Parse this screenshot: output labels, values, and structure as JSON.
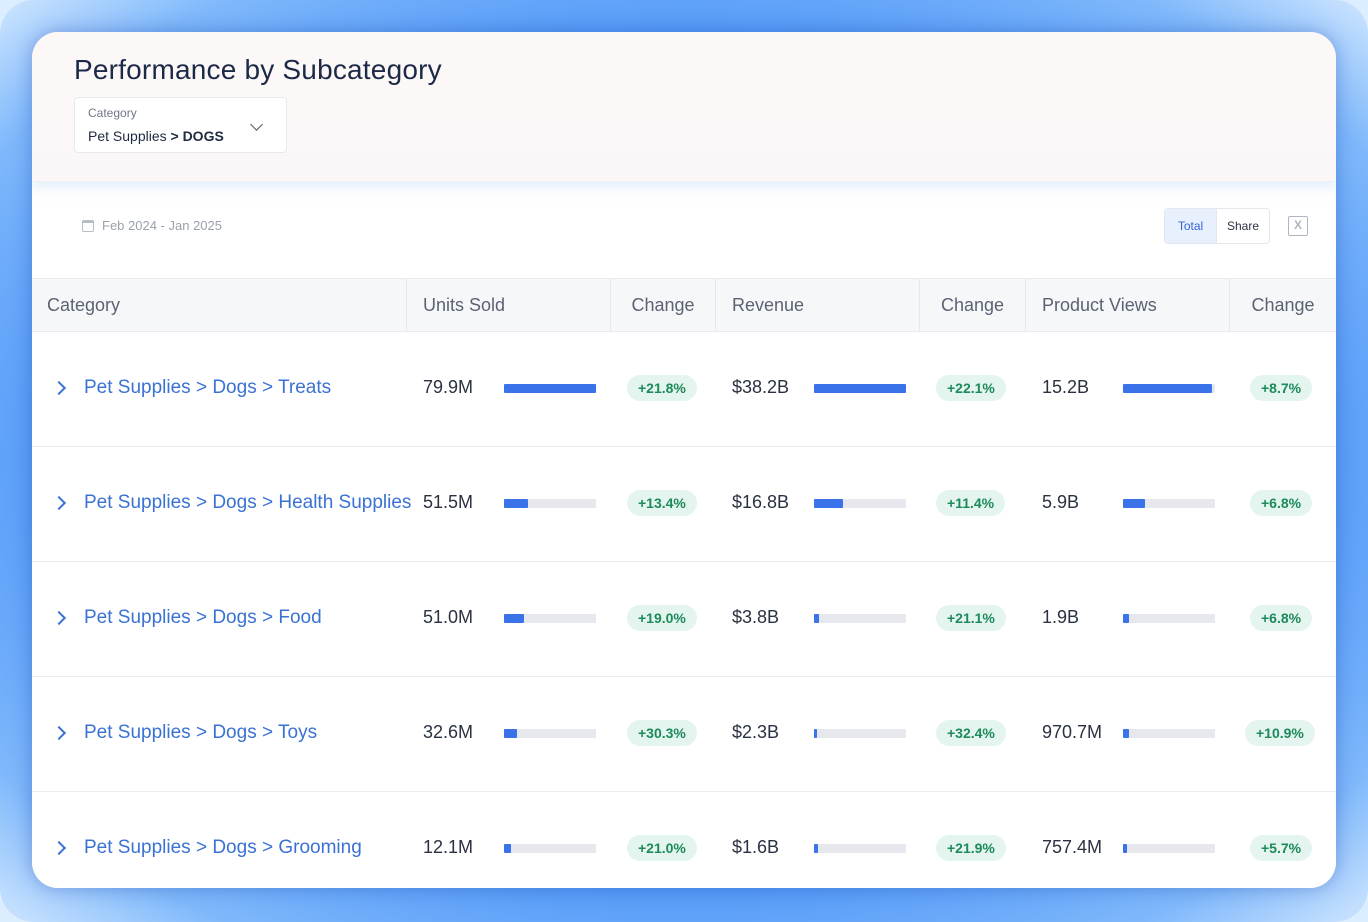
{
  "header": {
    "title": "Performance by Subcategory",
    "category_dropdown": {
      "label": "Category",
      "value_prefix": "Pet Supplies",
      "value_bold": "> DOGS"
    }
  },
  "toolbar": {
    "date_range": "Feb 2024 - Jan 2025",
    "toggle": {
      "total_label": "Total",
      "share_label": "Share",
      "active": "Total"
    },
    "excel_icon": "excel-export-icon",
    "excel_glyph": "X"
  },
  "table": {
    "columns": [
      "Category",
      "Units Sold",
      "Change",
      "Revenue",
      "Change",
      "Product Views",
      "Change"
    ],
    "rows": [
      {
        "category": "Pet Supplies > Dogs > Treats",
        "units": "79.9M",
        "units_fill": 1.0,
        "units_change": "+21.8%",
        "revenue": "$38.2B",
        "revenue_fill": 1.0,
        "revenue_change": "+22.1%",
        "views": "15.2B",
        "views_fill": 0.97,
        "views_change": "+8.7%"
      },
      {
        "category": "Pet Supplies > Dogs > Health Supplies",
        "units": "51.5M",
        "units_fill": 0.26,
        "units_change": "+13.4%",
        "revenue": "$16.8B",
        "revenue_fill": 0.32,
        "revenue_change": "+11.4%",
        "views": "5.9B",
        "views_fill": 0.24,
        "views_change": "+6.8%"
      },
      {
        "category": "Pet Supplies > Dogs > Food",
        "units": "51.0M",
        "units_fill": 0.22,
        "units_change": "+19.0%",
        "revenue": "$3.8B",
        "revenue_fill": 0.05,
        "revenue_change": "+21.1%",
        "views": "1.9B",
        "views_fill": 0.07,
        "views_change": "+6.8%"
      },
      {
        "category": "Pet Supplies > Dogs > Toys",
        "units": "32.6M",
        "units_fill": 0.14,
        "units_change": "+30.3%",
        "revenue": "$2.3B",
        "revenue_fill": 0.03,
        "revenue_change": "+32.4%",
        "views": "970.7M",
        "views_fill": 0.06,
        "views_change": "+10.9%"
      },
      {
        "category": "Pet Supplies > Dogs > Grooming",
        "units": "12.1M",
        "units_fill": 0.08,
        "units_change": "+21.0%",
        "revenue": "$1.6B",
        "revenue_fill": 0.04,
        "revenue_change": "+21.9%",
        "views": "757.4M",
        "views_fill": 0.04,
        "views_change": "+5.7%"
      }
    ]
  },
  "colors": {
    "accent": "#3a72ea",
    "link": "#3a72d4",
    "positive_bg": "#e3f5ee",
    "positive_text": "#1d8a5b"
  }
}
